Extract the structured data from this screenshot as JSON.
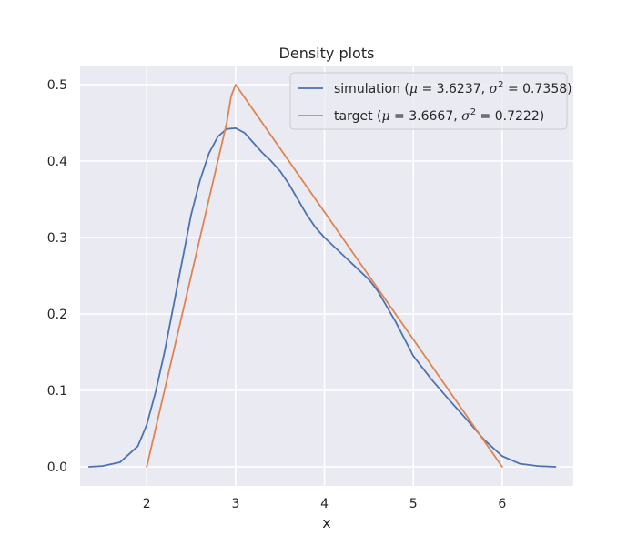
{
  "chart_data": {
    "type": "line",
    "title": "Density plots",
    "xlabel": "x",
    "ylabel": "",
    "xlim": [
      1.25,
      6.8
    ],
    "ylim": [
      -0.025,
      0.525
    ],
    "xticks": [
      2,
      3,
      4,
      5,
      6
    ],
    "yticks": [
      0.0,
      0.1,
      0.2,
      0.3,
      0.4,
      0.5
    ],
    "xtick_labels": [
      "2",
      "3",
      "4",
      "5",
      "6"
    ],
    "ytick_labels": [
      "0.0",
      "0.1",
      "0.2",
      "0.3",
      "0.4",
      "0.5"
    ],
    "grid": true,
    "legend_position": "top-right",
    "background": "#eaeaf2",
    "series": [
      {
        "legend": {
          "name": "simulation",
          "mu": "3.6237",
          "sigma2": "0.7358"
        },
        "color": "#4c72b0",
        "x": [
          1.35,
          1.5,
          1.7,
          1.9,
          2.0,
          2.1,
          2.2,
          2.3,
          2.4,
          2.5,
          2.6,
          2.7,
          2.8,
          2.9,
          3.0,
          3.1,
          3.2,
          3.3,
          3.4,
          3.5,
          3.6,
          3.7,
          3.8,
          3.9,
          4.0,
          4.2,
          4.4,
          4.5,
          4.6,
          4.8,
          5.0,
          5.2,
          5.4,
          5.6,
          5.8,
          6.0,
          6.2,
          6.4,
          6.6
        ],
        "y": [
          0.0,
          0.001,
          0.006,
          0.027,
          0.055,
          0.098,
          0.15,
          0.21,
          0.27,
          0.33,
          0.375,
          0.41,
          0.432,
          0.442,
          0.443,
          0.437,
          0.424,
          0.411,
          0.4,
          0.387,
          0.37,
          0.35,
          0.33,
          0.313,
          0.3,
          0.278,
          0.256,
          0.245,
          0.23,
          0.19,
          0.145,
          0.115,
          0.088,
          0.062,
          0.035,
          0.014,
          0.004,
          0.001,
          0.0
        ]
      },
      {
        "legend": {
          "name": "target",
          "mu": "3.6667",
          "sigma2": "0.7222"
        },
        "color": "#dd8452",
        "x": [
          2.0,
          2.9,
          2.95,
          3.0,
          4.5,
          6.0
        ],
        "y": [
          0.0,
          0.45,
          0.485,
          0.5,
          0.25,
          0.0
        ]
      }
    ]
  }
}
